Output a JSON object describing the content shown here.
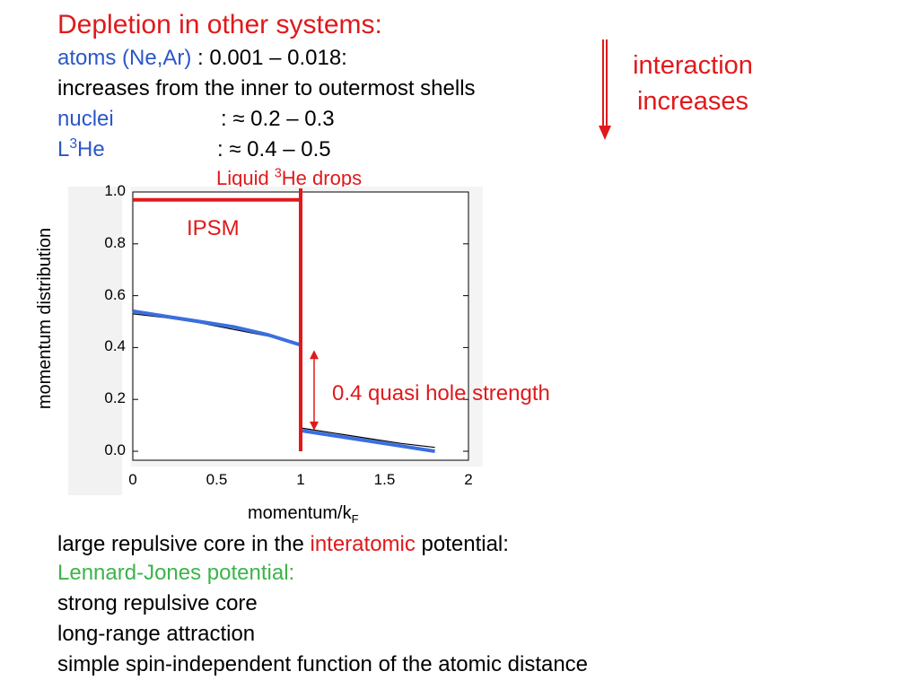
{
  "heading": "Depletion in other systems:",
  "lines": {
    "atoms_label": "atoms (Ne,Ar)",
    "atoms_value": ": 0.001 – 0.018:",
    "atoms_note": "increases from the inner to outermost shells",
    "nuclei_label": "nuclei",
    "nuclei_value": ": ≈ 0.2 – 0.3",
    "he_label_L": "L",
    "he_label_sup": "3",
    "he_label_he": "He",
    "he_value": ": ≈ 0.4 – 0.5"
  },
  "interaction": {
    "line1": "interaction",
    "line2": "increases"
  },
  "bottom": {
    "line1_a": "large repulsive core in the ",
    "line1_b": "interatomic",
    "line1_c": " potential:",
    "line2": "Lennard-Jones potential:",
    "line3": "strong repulsive core",
    "line4": "long-range attraction",
    "line5": "simple spin-independent function of the atomic distance"
  },
  "colors": {
    "accent_red": "#e0191c",
    "blue_text": "#2a57c9",
    "green_text": "#3cb44a",
    "data_blue": "#3a6fe0"
  },
  "chart_data": {
    "type": "line",
    "title_a": "Liquid ",
    "title_sup": "3",
    "title_b": "He drops",
    "xlabel_main": "momentum/k",
    "xlabel_sub": "F",
    "ylabel": "momentum distribution",
    "xlim": [
      0,
      2
    ],
    "ylim": [
      0,
      1
    ],
    "x_ticks": [
      "0",
      "0.5",
      "1",
      "1.5",
      "2"
    ],
    "y_ticks": [
      "0.0",
      "0.2",
      "0.4",
      "0.6",
      "0.8",
      "1.0"
    ],
    "annotations": {
      "ipsm": "IPSM",
      "quasi_hole": "0.4 quasi hole strength"
    },
    "series": [
      {
        "name": "IPSM",
        "color": "#e0191c",
        "x": [
          0,
          1.0,
          1.0,
          1.0
        ],
        "y": [
          0.97,
          0.97,
          0.97,
          0.0
        ]
      },
      {
        "color": "#3a6fe0",
        "x": [
          0,
          0.2,
          0.4,
          0.6,
          0.8,
          0.95,
          1.0,
          1.0,
          1.2,
          1.4,
          1.6,
          1.8
        ],
        "y": [
          0.54,
          0.52,
          0.5,
          0.48,
          0.45,
          0.42,
          0.41,
          0.08,
          0.06,
          0.04,
          0.02,
          0.0
        ]
      },
      {
        "color": "#000000",
        "x": [
          0,
          0.2,
          0.4,
          0.6,
          0.8,
          0.95,
          1.0,
          1.0,
          1.2,
          1.4,
          1.6,
          1.8
        ],
        "y": [
          0.53,
          0.515,
          0.495,
          0.47,
          0.445,
          0.425,
          0.41,
          0.09,
          0.07,
          0.05,
          0.03,
          0.015
        ]
      }
    ]
  }
}
